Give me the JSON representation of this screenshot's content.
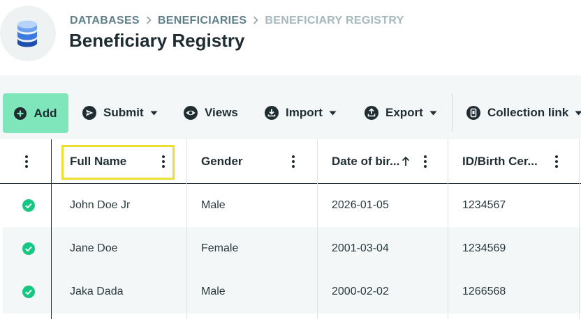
{
  "breadcrumb": [
    "DATABASES",
    "BENEFICIARIES",
    "BENEFICIARY REGISTRY"
  ],
  "page_title": "Beneficiary Registry",
  "toolbar": {
    "add": "Add",
    "submit": "Submit",
    "views": "Views",
    "import": "Import",
    "export": "Export",
    "collection_link": "Collection link"
  },
  "columns": [
    "Full Name",
    "Gender",
    "Date of bir...",
    "ID/Birth Cer..."
  ],
  "sort": {
    "column": "Date of bir...",
    "direction": "ascending"
  },
  "rows": [
    {
      "status": "check-circle-icon",
      "full_name": "John Doe Jr",
      "gender": "Male",
      "dob": "2026-01-05",
      "id": "1234567"
    },
    {
      "status": "check-circle-icon",
      "full_name": "Jane Doe",
      "gender": "Female",
      "dob": "2001-03-04",
      "id": "1234569"
    },
    {
      "status": "check-circle-icon",
      "full_name": "Jaka Dada",
      "gender": "Male",
      "dob": "2000-02-02",
      "id": "1266568"
    }
  ],
  "colors": {
    "accent": "#7fe6bb",
    "status_ok": "#16c784",
    "highlight": "#ecdf2f",
    "breadcrumb": "#5e7f87",
    "toolbar_bg": "#f3f7f7"
  }
}
